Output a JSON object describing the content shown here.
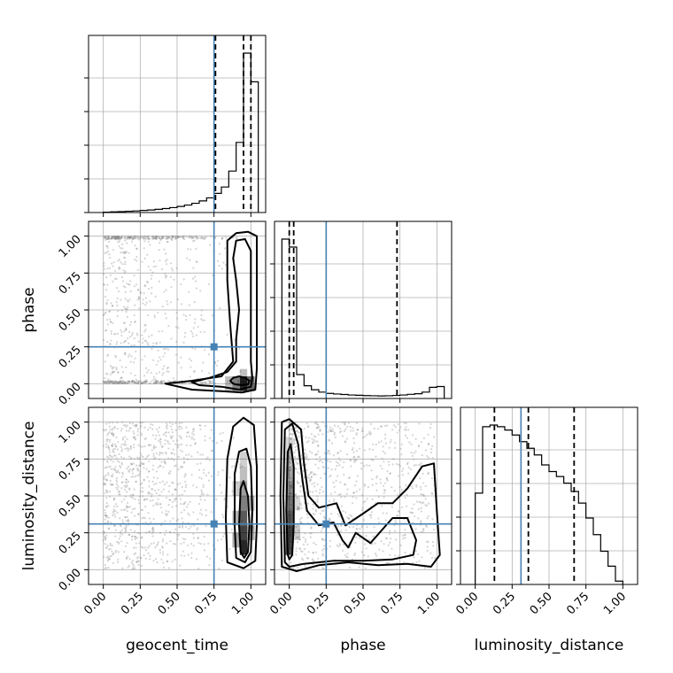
{
  "chart_data": {
    "type": "corner",
    "parameters": [
      "geocent_time",
      "phase",
      "luminosity_distance"
    ],
    "tick_labels": [
      "0.00",
      "0.25",
      "0.50",
      "0.75",
      "1.00"
    ],
    "truths": {
      "geocent_time": 0.75,
      "phase": 0.25,
      "luminosity_distance": 0.31
    },
    "quantiles": {
      "geocent_time": [
        0.76,
        0.95,
        1.0
      ],
      "phase": [
        0.0,
        0.03,
        0.73
      ],
      "luminosity_distance": [
        0.13,
        0.36,
        0.67
      ]
    },
    "histograms": {
      "geocent_time": {
        "edges": [
          0.0,
          0.05,
          0.1,
          0.15,
          0.2,
          0.25,
          0.3,
          0.35,
          0.4,
          0.45,
          0.5,
          0.55,
          0.6,
          0.65,
          0.7,
          0.75,
          0.8,
          0.85,
          0.9,
          0.95,
          1.0,
          1.05
        ],
        "counts": [
          0.002,
          0.004,
          0.006,
          0.008,
          0.01,
          0.013,
          0.016,
          0.02,
          0.025,
          0.031,
          0.038,
          0.047,
          0.058,
          0.073,
          0.092,
          0.12,
          0.16,
          0.26,
          0.44,
          1.0,
          0.82
        ]
      },
      "phase": {
        "edges": [
          -0.05,
          0.0,
          0.05,
          0.1,
          0.15,
          0.2,
          0.25,
          0.3,
          0.35,
          0.4,
          0.45,
          0.5,
          0.55,
          0.6,
          0.65,
          0.7,
          0.75,
          0.8,
          0.85,
          0.9,
          0.95,
          1.0,
          1.05
        ],
        "counts": [
          1.0,
          0.95,
          0.15,
          0.08,
          0.055,
          0.04,
          0.032,
          0.028,
          0.025,
          0.022,
          0.02,
          0.018,
          0.017,
          0.016,
          0.017,
          0.019,
          0.022,
          0.026,
          0.03,
          0.04,
          0.07,
          0.075
        ]
      },
      "luminosity_distance": {
        "edges": [
          0.0,
          0.05,
          0.1,
          0.15,
          0.2,
          0.25,
          0.3,
          0.35,
          0.4,
          0.45,
          0.5,
          0.55,
          0.6,
          0.65,
          0.7,
          0.75,
          0.8,
          0.85,
          0.9,
          0.95,
          1.0
        ],
        "counts": [
          0.55,
          0.95,
          0.96,
          0.95,
          0.93,
          0.9,
          0.86,
          0.82,
          0.78,
          0.72,
          0.68,
          0.65,
          0.61,
          0.56,
          0.49,
          0.4,
          0.3,
          0.2,
          0.11,
          0.02
        ]
      }
    },
    "pairs": [
      {
        "x": "geocent_time",
        "y": "phase",
        "contours": [
          [
            [
              0.88,
              0.0
            ],
            [
              0.86,
              0.02
            ],
            [
              0.88,
              0.04
            ],
            [
              0.92,
              0.05
            ],
            [
              0.96,
              0.04
            ],
            [
              0.99,
              0.02
            ],
            [
              0.98,
              -0.005
            ],
            [
              0.94,
              -0.01
            ],
            [
              0.9,
              -0.005
            ],
            [
              0.88,
              0.0
            ]
          ],
          [
            [
              0.6,
              0.01
            ],
            [
              0.72,
              0.04
            ],
            [
              0.84,
              0.08
            ],
            [
              0.9,
              0.15
            ],
            [
              0.9,
              0.3
            ],
            [
              0.92,
              0.5
            ],
            [
              0.9,
              0.7
            ],
            [
              0.88,
              0.85
            ],
            [
              0.9,
              0.97
            ],
            [
              0.96,
              0.98
            ],
            [
              1.0,
              0.9
            ],
            [
              1.0,
              0.5
            ],
            [
              1.0,
              0.15
            ],
            [
              1.01,
              0.04
            ],
            [
              1.0,
              -0.02
            ],
            [
              0.92,
              -0.04
            ],
            [
              0.8,
              -0.02
            ],
            [
              0.65,
              -0.01
            ],
            [
              0.6,
              0.01
            ]
          ],
          [
            [
              0.42,
              0.0
            ],
            [
              0.6,
              0.02
            ],
            [
              0.8,
              0.05
            ],
            [
              0.88,
              0.15
            ],
            [
              0.86,
              0.4
            ],
            [
              0.84,
              0.7
            ],
            [
              0.84,
              0.97
            ],
            [
              0.9,
              1.02
            ],
            [
              0.98,
              1.03
            ],
            [
              1.04,
              1.0
            ],
            [
              1.04,
              0.5
            ],
            [
              1.04,
              0.1
            ],
            [
              1.03,
              -0.04
            ],
            [
              0.94,
              -0.06
            ],
            [
              0.8,
              -0.05
            ],
            [
              0.6,
              -0.04
            ],
            [
              0.42,
              0.0
            ]
          ]
        ]
      },
      {
        "x": "geocent_time",
        "y": "luminosity_distance",
        "contours": [
          [
            [
              0.93,
              0.12
            ],
            [
              0.92,
              0.3
            ],
            [
              0.93,
              0.55
            ],
            [
              0.95,
              0.6
            ],
            [
              0.98,
              0.5
            ],
            [
              0.99,
              0.3
            ],
            [
              0.98,
              0.12
            ],
            [
              0.955,
              0.08
            ],
            [
              0.93,
              0.12
            ]
          ],
          [
            [
              0.9,
              0.08
            ],
            [
              0.89,
              0.3
            ],
            [
              0.89,
              0.65
            ],
            [
              0.92,
              0.8
            ],
            [
              0.97,
              0.82
            ],
            [
              1.0,
              0.7
            ],
            [
              1.01,
              0.4
            ],
            [
              1.0,
              0.12
            ],
            [
              0.96,
              0.05
            ],
            [
              0.9,
              0.08
            ]
          ],
          [
            [
              0.84,
              0.05
            ],
            [
              0.83,
              0.35
            ],
            [
              0.84,
              0.75
            ],
            [
              0.88,
              0.97
            ],
            [
              0.95,
              1.03
            ],
            [
              1.02,
              0.98
            ],
            [
              1.04,
              0.7
            ],
            [
              1.04,
              0.3
            ],
            [
              1.03,
              0.06
            ],
            [
              0.95,
              0.01
            ],
            [
              0.84,
              0.05
            ]
          ]
        ]
      },
      {
        "x": "phase",
        "y": "luminosity_distance",
        "contours": [
          [
            [
              -0.01,
              0.1
            ],
            [
              -0.02,
              0.4
            ],
            [
              -0.01,
              0.8
            ],
            [
              0.01,
              0.85
            ],
            [
              0.03,
              0.7
            ],
            [
              0.03,
              0.3
            ],
            [
              0.02,
              0.1
            ],
            [
              0.0,
              0.07
            ],
            [
              -0.01,
              0.1
            ]
          ],
          [
            [
              -0.03,
              0.05
            ],
            [
              -0.04,
              0.5
            ],
            [
              -0.03,
              0.95
            ],
            [
              0.02,
              0.99
            ],
            [
              0.06,
              0.85
            ],
            [
              0.09,
              0.6
            ],
            [
              0.12,
              0.4
            ],
            [
              0.2,
              0.3
            ],
            [
              0.3,
              0.32
            ],
            [
              0.36,
              0.2
            ],
            [
              0.4,
              0.15
            ],
            [
              0.45,
              0.25
            ],
            [
              0.55,
              0.18
            ],
            [
              0.62,
              0.26
            ],
            [
              0.7,
              0.35
            ],
            [
              0.8,
              0.35
            ],
            [
              0.86,
              0.2
            ],
            [
              0.84,
              0.1
            ],
            [
              0.7,
              0.07
            ],
            [
              0.5,
              0.06
            ],
            [
              0.3,
              0.06
            ],
            [
              0.1,
              0.04
            ],
            [
              0.0,
              0.02
            ],
            [
              -0.03,
              0.05
            ]
          ],
          [
            [
              -0.05,
              0.02
            ],
            [
              -0.06,
              0.5
            ],
            [
              -0.05,
              1.0
            ],
            [
              0.0,
              1.02
            ],
            [
              0.08,
              0.95
            ],
            [
              0.1,
              0.72
            ],
            [
              0.13,
              0.5
            ],
            [
              0.2,
              0.42
            ],
            [
              0.32,
              0.45
            ],
            [
              0.38,
              0.3
            ],
            [
              0.5,
              0.38
            ],
            [
              0.6,
              0.45
            ],
            [
              0.7,
              0.45
            ],
            [
              0.8,
              0.55
            ],
            [
              0.9,
              0.7
            ],
            [
              0.98,
              0.72
            ],
            [
              1.0,
              0.4
            ],
            [
              1.02,
              0.1
            ],
            [
              0.96,
              0.02
            ],
            [
              0.8,
              0.04
            ],
            [
              0.6,
              0.03
            ],
            [
              0.4,
              0.05
            ],
            [
              0.2,
              0.03
            ],
            [
              0.05,
              -0.01
            ],
            [
              -0.05,
              0.02
            ]
          ]
        ]
      }
    ],
    "density_cells": [
      {
        "x": "geocent_time",
        "y": "phase",
        "cells": [
          [
            0.95,
            0.0,
            0.85
          ],
          [
            0.9,
            0.0,
            0.5
          ],
          [
            1.0,
            0.0,
            0.6
          ],
          [
            0.85,
            0.0,
            0.25
          ],
          [
            0.95,
            0.05,
            0.25
          ]
        ]
      },
      {
        "x": "geocent_time",
        "y": "luminosity_distance",
        "cells": [
          [
            0.95,
            0.15,
            0.85
          ],
          [
            0.95,
            0.25,
            0.75
          ],
          [
            0.95,
            0.35,
            0.65
          ],
          [
            0.95,
            0.45,
            0.5
          ],
          [
            0.95,
            0.55,
            0.38
          ],
          [
            0.95,
            0.65,
            0.25
          ],
          [
            0.95,
            0.75,
            0.18
          ],
          [
            0.9,
            0.2,
            0.35
          ],
          [
            0.9,
            0.35,
            0.3
          ],
          [
            1.0,
            0.25,
            0.35
          ],
          [
            1.0,
            0.45,
            0.25
          ],
          [
            0.9,
            0.55,
            0.2
          ]
        ]
      },
      {
        "x": "phase",
        "y": "luminosity_distance",
        "cells": [
          [
            0.0,
            0.15,
            0.7
          ],
          [
            0.0,
            0.25,
            0.75
          ],
          [
            0.0,
            0.35,
            0.65
          ],
          [
            0.0,
            0.45,
            0.55
          ],
          [
            0.0,
            0.55,
            0.45
          ],
          [
            0.0,
            0.65,
            0.35
          ],
          [
            0.0,
            0.75,
            0.25
          ],
          [
            0.05,
            0.25,
            0.2
          ],
          [
            0.05,
            0.45,
            0.15
          ],
          [
            0.0,
            0.85,
            0.15
          ]
        ]
      }
    ]
  }
}
